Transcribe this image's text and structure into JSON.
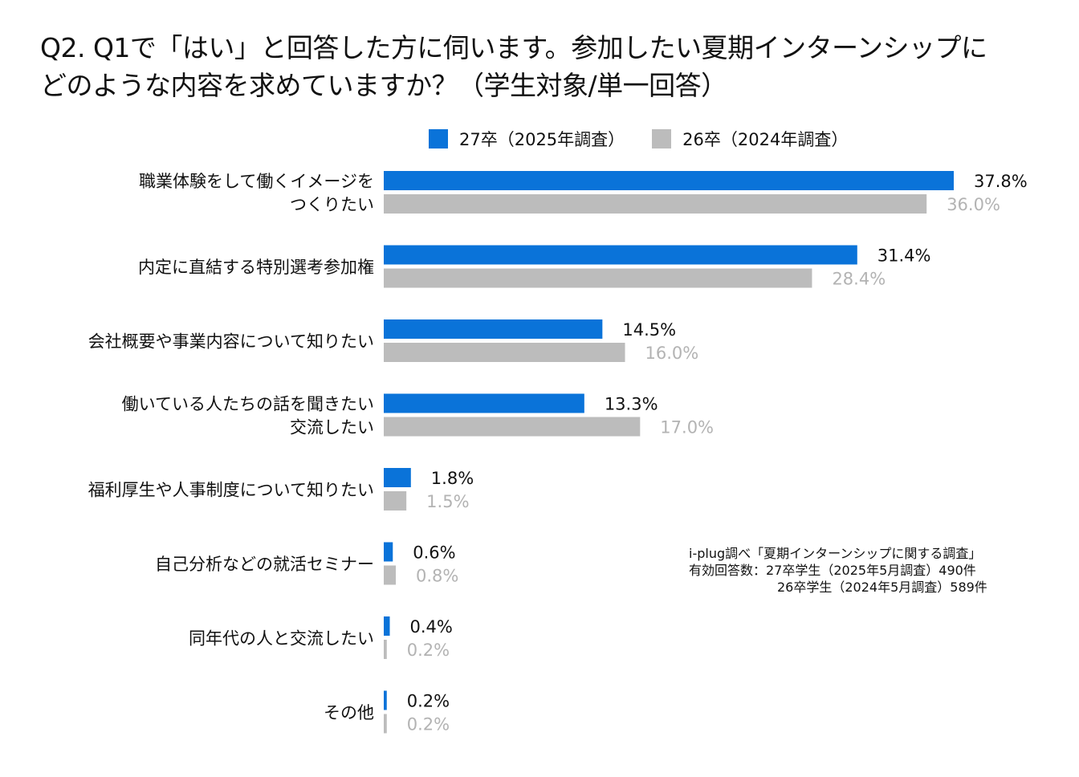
{
  "title_lines": [
    "Q2. Q1で「はい」と回答した方に伺います。参加したい夏期インターンシップに",
    "どのような内容を求めていますか？（学生対象/単一回答）"
  ],
  "note_lines": [
    "i-plug調べ「夏期インターンシップに関する調査」",
    "有効回答数：27卒学生（2025年5月調査）490件",
    "26卒学生（2024年5月調査）589件"
  ],
  "colors": {
    "series_2025": "#0a73d9",
    "series_2024": "#bcbcbc",
    "label_2024": "#b3b3b3"
  },
  "chart_data": {
    "type": "bar",
    "orientation": "horizontal",
    "title": "Q2. Q1で「はい」と回答した方に伺います。参加したい夏期インターンシップにどのような内容を求めていますか？（学生対象/単一回答）",
    "xlabel": "",
    "ylabel": "",
    "xlim": [
      0,
      40
    ],
    "legend_position": "top",
    "categories": [
      [
        "職業体験をして働くイメージを",
        "つくりたい"
      ],
      [
        "内定に直結する特別選考参加権"
      ],
      [
        "会社概要や事業内容について知りたい"
      ],
      [
        "働いている人たちの話を聞きたい",
        "交流したい"
      ],
      [
        "福利厚生や人事制度について知りたい"
      ],
      [
        "自己分析などの就活セミナー"
      ],
      [
        "同年代の人と交流したい"
      ],
      [
        "その他"
      ]
    ],
    "series": [
      {
        "name": "27卒（2025年調査）",
        "values": [
          37.8,
          31.4,
          14.5,
          13.3,
          1.8,
          0.6,
          0.4,
          0.2
        ],
        "labels": [
          "37.8%",
          "31.4%",
          "14.5%",
          "13.3%",
          "1.8%",
          "0.6%",
          "0.4%",
          "0.2%"
        ]
      },
      {
        "name": "26卒（2024年調査）",
        "values": [
          36.0,
          28.4,
          16.0,
          17.0,
          1.5,
          0.8,
          0.2,
          0.2
        ],
        "labels": [
          "36.0%",
          "28.4%",
          "16.0%",
          "17.0%",
          "1.5%",
          "0.8%",
          "0.2%",
          "0.2%"
        ]
      }
    ]
  }
}
